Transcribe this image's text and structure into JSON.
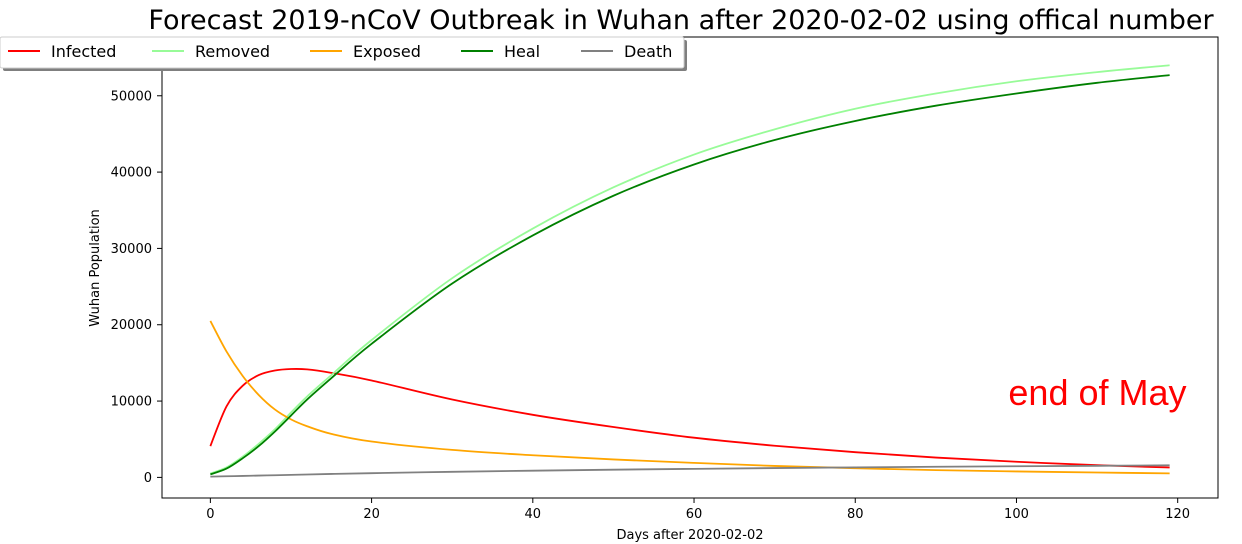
{
  "chart_data": {
    "type": "line",
    "title": "Forecast 2019-nCoV Outbreak in Wuhan after 2020-02-02 using offical number",
    "xlabel": "Days after 2020-02-02",
    "ylabel": "Wuhan Population",
    "xlim": [
      -6,
      125
    ],
    "ylim": [
      -2700,
      57700
    ],
    "x_ticks": [
      0,
      20,
      40,
      60,
      80,
      100,
      120
    ],
    "y_ticks": [
      0,
      10000,
      20000,
      30000,
      40000,
      50000
    ],
    "legend_position": "top-left",
    "annotation": {
      "text": "end of May",
      "x": 99,
      "y": 9500,
      "color": "#ff0000"
    },
    "x": [
      0,
      2,
      4,
      6,
      8,
      10,
      12,
      15,
      20,
      30,
      40,
      50,
      60,
      70,
      80,
      90,
      100,
      110,
      119
    ],
    "series": [
      {
        "name": "Infected",
        "color": "#ff0000",
        "values": [
          4100,
          9300,
          12000,
          13400,
          14000,
          14200,
          14150,
          13700,
          12700,
          10200,
          8200,
          6600,
          5200,
          4150,
          3300,
          2600,
          2050,
          1600,
          1300
        ]
      },
      {
        "name": "Removed",
        "color": "#98fb98",
        "values": [
          500,
          1300,
          2700,
          4400,
          6300,
          8500,
          10600,
          13400,
          18000,
          26100,
          32600,
          38000,
          42300,
          45600,
          48300,
          50300,
          51900,
          53100,
          54000
        ]
      },
      {
        "name": "Exposed",
        "color": "#ffa500",
        "values": [
          20500,
          16500,
          13300,
          10800,
          8900,
          7600,
          6700,
          5700,
          4700,
          3600,
          2900,
          2350,
          1900,
          1500,
          1200,
          950,
          780,
          640,
          530
        ]
      },
      {
        "name": "Heal",
        "color": "#008000",
        "values": [
          400,
          1150,
          2500,
          4100,
          6000,
          8100,
          10200,
          13000,
          17500,
          25400,
          31700,
          36900,
          41000,
          44200,
          46700,
          48700,
          50300,
          51700,
          52700
        ]
      },
      {
        "name": "Death",
        "color": "#808080",
        "values": [
          100,
          150,
          190,
          240,
          280,
          330,
          380,
          450,
          550,
          730,
          880,
          1010,
          1120,
          1220,
          1310,
          1390,
          1460,
          1520,
          1580
        ]
      }
    ]
  }
}
